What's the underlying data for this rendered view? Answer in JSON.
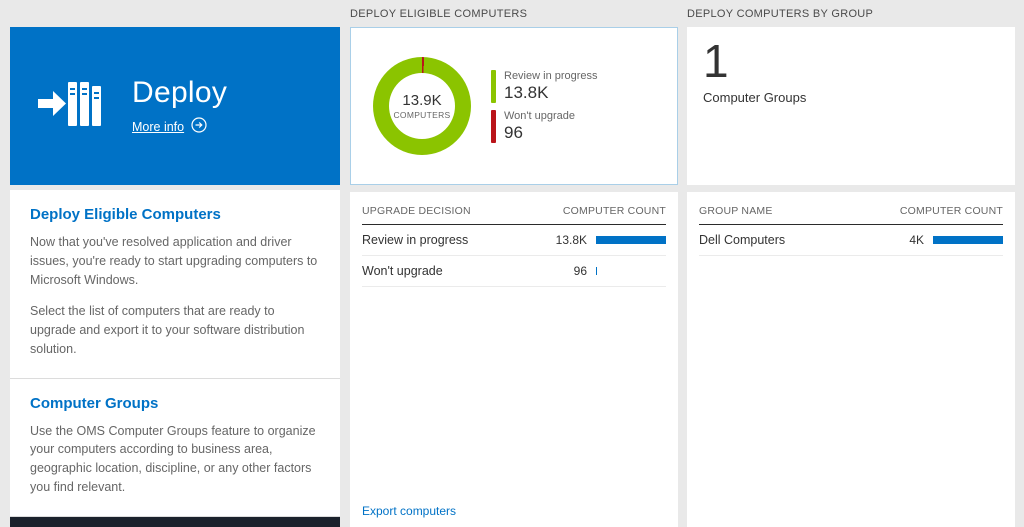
{
  "colors": {
    "accent_blue": "#0072c6",
    "donut_green": "#8bc400",
    "warn_red": "#ba141a",
    "bar_blue": "#0072c6",
    "left_footer_dark": "#1b222c"
  },
  "left": {
    "tile": {
      "title": "Deploy",
      "more_info_label": "More info"
    },
    "section1": {
      "heading": "Deploy Eligible Computers",
      "para1": "Now that you've resolved application and driver issues, you're ready to start upgrading computers to Microsoft Windows.",
      "para2": "Select the list of computers that are ready to upgrade and export it to your software distribution solution."
    },
    "section2": {
      "heading": "Computer Groups",
      "para1": "Use the OMS Computer Groups feature to organize your computers according to business area, geographic location, discipline, or any other factors you find relevant."
    }
  },
  "middle": {
    "header": "DEPLOY ELIGIBLE COMPUTERS",
    "donut": {
      "center_value": "13.9K",
      "center_label": "COMPUTERS",
      "segments": [
        {
          "label": "Review in progress",
          "value": "13.8K",
          "color": "#8bc400",
          "pct": 99.3
        },
        {
          "label": "Won't upgrade",
          "value": "96",
          "color": "#ba141a",
          "pct": 0.7
        }
      ]
    },
    "table": {
      "col1": "UPGRADE DECISION",
      "col2": "COMPUTER COUNT",
      "rows": [
        {
          "label": "Review in progress",
          "value": "13.8K",
          "bar_pct": 100
        },
        {
          "label": "Won't upgrade",
          "value": "96",
          "bar_pct": 2
        }
      ]
    },
    "export_link": "Export computers"
  },
  "right": {
    "header": "DEPLOY COMPUTERS BY GROUP",
    "tile": {
      "count": "1",
      "label": "Computer Groups"
    },
    "table": {
      "col1": "GROUP NAME",
      "col2": "COMPUTER COUNT",
      "rows": [
        {
          "label": "Dell Computers",
          "value": "4K",
          "bar_pct": 100
        }
      ]
    }
  }
}
